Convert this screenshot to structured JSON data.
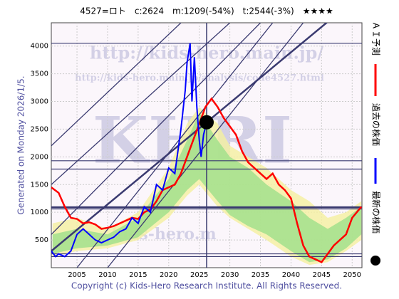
{
  "chart_data": {
    "type": "line",
    "title": "4527=ロト　c:2624　m:1209(-54%)　t:2544(-3%)　★★★★",
    "side_label": "Generated on Monday 2026/1/5.",
    "footer": "Copyright (c) Kids-Hero Research Institute. All Rights Reserved.",
    "watermarks": [
      "http://kids-hero.main.jp/",
      "http://kids-hero.main.jp/analysis/code4527.html",
      "KHRI",
      "kids-hero.m"
    ],
    "xlim": [
      2000.8,
      2051.6
    ],
    "ylim": [
      0,
      4420
    ],
    "xticks": [
      2005,
      2010,
      2015,
      2020,
      2025,
      2030,
      2035,
      2040,
      2045,
      2050
    ],
    "yticks": [
      500,
      1000,
      1500,
      2000,
      2500,
      3000,
      3500,
      4000
    ],
    "grid": true,
    "series": [
      {
        "name": "ＡＩ予測",
        "color": "#ff0000",
        "x": [
          2000.8,
          2002,
          2003,
          2004,
          2005,
          2006,
          2007,
          2008,
          2009,
          2010,
          2011,
          2012,
          2013,
          2014,
          2015,
          2016,
          2017,
          2018,
          2019,
          2020,
          2021,
          2022,
          2023,
          2024,
          2025,
          2026,
          2027,
          2028,
          2029,
          2030,
          2031,
          2032,
          2033,
          2034,
          2035,
          2036,
          2037,
          2038,
          2039,
          2040,
          2041,
          2042,
          2043,
          2044,
          2045,
          2046,
          2047,
          2048,
          2049,
          2050,
          2051.5
        ],
        "values": [
          1450,
          1350,
          1100,
          900,
          880,
          800,
          820,
          780,
          700,
          720,
          750,
          800,
          850,
          900,
          880,
          1000,
          1050,
          1200,
          1400,
          1450,
          1500,
          1700,
          2000,
          2300,
          2600,
          2900,
          3050,
          2900,
          2700,
          2550,
          2400,
          2100,
          1900,
          1800,
          1700,
          1600,
          1700,
          1500,
          1400,
          1250,
          800,
          400,
          200,
          150,
          100,
          250,
          400,
          500,
          600,
          900,
          1100
        ]
      },
      {
        "name": "過去の株価",
        "color": "#0000ff",
        "x": [
          2000.8,
          2001.5,
          2002,
          2003,
          2004,
          2005,
          2006,
          2007,
          2008,
          2009,
          2010,
          2011,
          2012,
          2013,
          2014,
          2015,
          2016,
          2017,
          2018,
          2019,
          2020,
          2021,
          2022,
          2022.7,
          2023,
          2023.5,
          2023.8,
          2024.2,
          2024.6,
          2025,
          2025.3,
          2025.7,
          2026.2
        ],
        "values": [
          300,
          200,
          250,
          200,
          300,
          600,
          700,
          600,
          500,
          450,
          500,
          550,
          650,
          700,
          900,
          800,
          1100,
          1000,
          1500,
          1400,
          1800,
          1700,
          2500,
          3200,
          3700,
          4050,
          3000,
          3800,
          2900,
          2300,
          2000,
          2400,
          2624
        ]
      },
      {
        "name": "最新の株価",
        "color": "#000000",
        "x": [
          2026.2
        ],
        "values": [
          2624
        ]
      }
    ],
    "bands": [
      {
        "color": "#f5f0a0",
        "x": [
          2001,
          2005,
          2010,
          2015,
          2020,
          2023,
          2025,
          2028,
          2030,
          2033,
          2036,
          2040,
          2043,
          2046,
          2049,
          2051.5
        ],
        "upper": [
          800,
          900,
          700,
          1000,
          1800,
          2600,
          2900,
          2600,
          2200,
          2000,
          1800,
          1400,
          1200,
          900,
          1000,
          1200
        ],
        "lower": [
          200,
          300,
          350,
          500,
          900,
          1300,
          1500,
          1100,
          900,
          700,
          500,
          200,
          50,
          100,
          300,
          500
        ]
      },
      {
        "color": "#9de08a",
        "x": [
          2001,
          2005,
          2010,
          2015,
          2020,
          2023,
          2025,
          2028,
          2030,
          2033,
          2036,
          2040,
          2043,
          2046,
          2049,
          2051.5
        ],
        "upper": [
          600,
          700,
          600,
          900,
          1600,
          2300,
          2800,
          2300,
          2000,
          1800,
          1500,
          1200,
          900,
          700,
          900,
          1100
        ],
        "lower": [
          250,
          350,
          400,
          550,
          1000,
          1400,
          1600,
          1200,
          950,
          750,
          600,
          300,
          100,
          150,
          350,
          600
        ]
      }
    ],
    "hlines": [
      4050,
      1930,
      1780,
      1090,
      1060,
      250,
      200
    ],
    "vline": 2026.2,
    "trend_lines": [
      {
        "x": [
          2000.8,
          2051.6
        ],
        "y": [
          300,
          4950
        ]
      },
      {
        "x": [
          2000.8,
          2030
        ],
        "y": [
          1500,
          4420
        ]
      },
      {
        "x": [
          2000.8,
          2035
        ],
        "y": [
          600,
          4420
        ]
      },
      {
        "x": [
          2005,
          2037
        ],
        "y": [
          0,
          4420
        ]
      },
      {
        "x": [
          2010,
          2042
        ],
        "y": [
          0,
          4420
        ]
      },
      {
        "x": [
          2000.8,
          2022
        ],
        "y": [
          2200,
          4420
        ]
      }
    ]
  }
}
